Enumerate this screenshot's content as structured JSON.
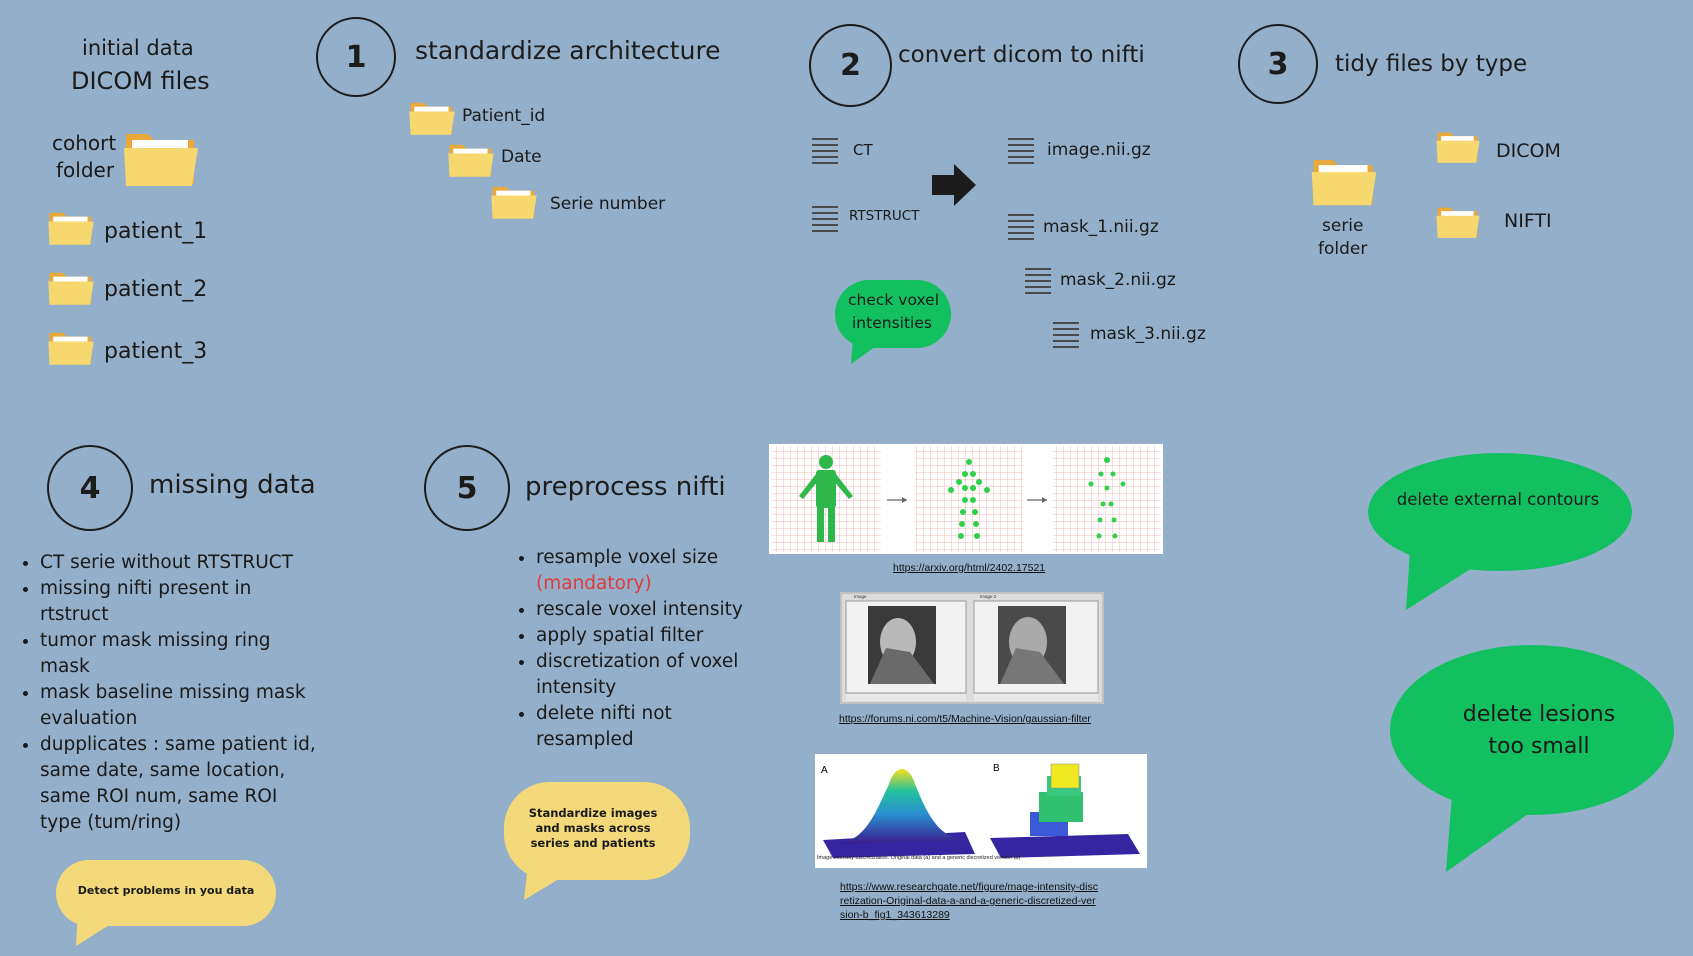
{
  "initial": {
    "line1": "initial data",
    "line2": "DICOM files",
    "cohort1": "cohort",
    "cohort2": "folder",
    "patients": [
      "patient_1",
      "patient_2",
      "patient_3"
    ]
  },
  "step1": {
    "number": "1",
    "title": "standardize architecture",
    "levels": [
      "Patient_id",
      "Date",
      "Serie number"
    ]
  },
  "step2": {
    "number": "2",
    "title": "convert dicom to nifti",
    "inputs": [
      "CT",
      "RTSTRUCT"
    ],
    "outputs": [
      "image.nii.gz",
      "mask_1.nii.gz",
      "mask_2.nii.gz",
      "mask_3.nii.gz"
    ],
    "bubble": [
      "check voxel",
      "intensities"
    ]
  },
  "step3": {
    "number": "3",
    "title": "tidy files by type",
    "serie1": "serie",
    "serie2": "folder",
    "types": [
      "DICOM",
      "NIFTI"
    ]
  },
  "step4": {
    "number": "4",
    "title": "missing data",
    "items": [
      "CT serie without RTSTRUCT",
      "missing nifti present in rtstruct",
      "tumor mask missing ring mask",
      "mask baseline missing mask evaluation",
      "dupplicates : same patient id, same date, same location, same ROI num, same ROI type (tum/ring)"
    ],
    "bubble": "Detect problems in you data"
  },
  "step5": {
    "number": "5",
    "title": "preprocess nifti",
    "item1": "resample voxel size",
    "item1_note": "(mandatory)",
    "items": [
      "rescale voxel intensity",
      "apply spatial filter",
      "discretization of voxel intensity",
      "delete nifti not resampled"
    ],
    "bubble": "Standardize images and masks across series and patients"
  },
  "references": {
    "link1": "https://arxiv.org/html/2402.17521",
    "link2": "https://forums.ni.com/t5/Machine-Vision/gaussian-filter",
    "link3": "https://www.researchgate.net/figure/mage-intensity-discretization-Original-data-a-and-a-generic-discretized-version-b_fig1_343613289",
    "fig3_label_a": "A",
    "fig3_label_b": "B",
    "fig3_caption": "Image intensity discretization. Original data (a) and a generic discretized version (b)",
    "fig2_label1": "Image",
    "fig2_label2": "Image 2"
  },
  "right_bubbles": {
    "top": "delete external contours",
    "bottom": [
      "delete lesions",
      "too small"
    ]
  },
  "colors": {
    "background": "#93afc9",
    "green": "#12c060",
    "yellow": "#f3d97a",
    "folder": "#f7d86e"
  },
  "icons": {
    "folder": "folder-icon",
    "file": "file-lines-icon",
    "arrow": "arrow-right-icon"
  }
}
